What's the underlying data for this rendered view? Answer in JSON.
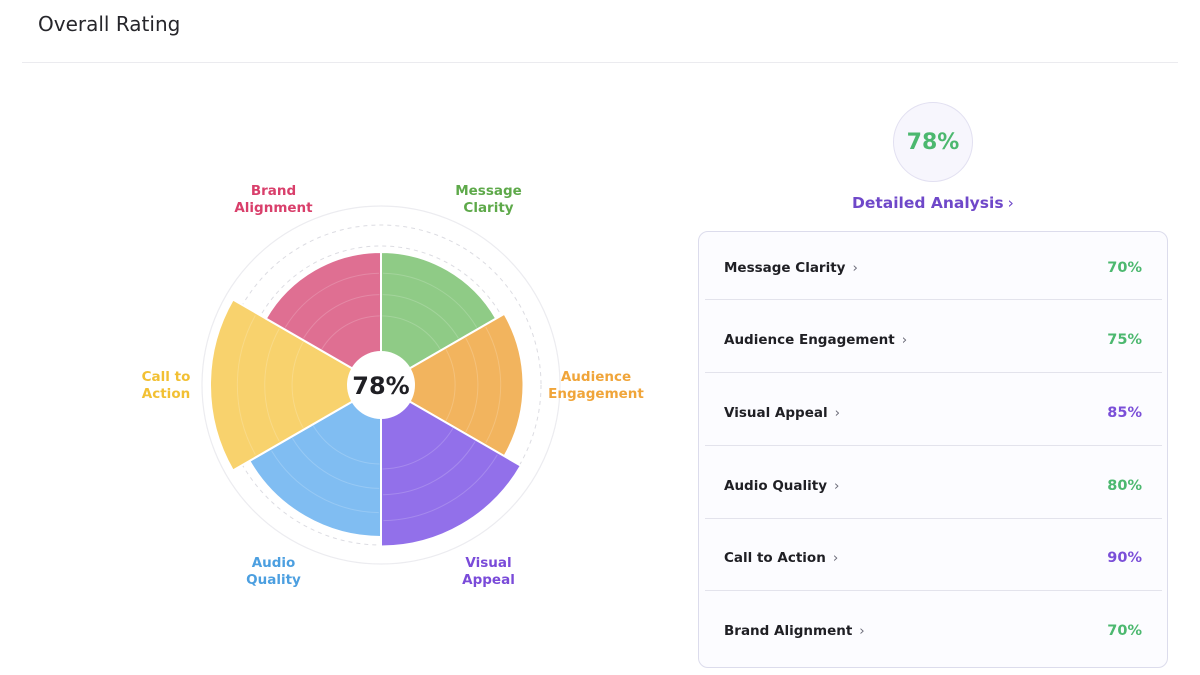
{
  "header": {
    "title": "Overall Rating"
  },
  "summary": {
    "score": "78%",
    "detail_link": "Detailed Analysis",
    "chevron": "›"
  },
  "colors": {
    "green": "#4cb86f",
    "purple": "#7b4fd8",
    "link": "#6f48c9"
  },
  "metrics": [
    {
      "label": "Message Clarity",
      "value": "70%",
      "color": "#4cb86f"
    },
    {
      "label": "Audience Engagement",
      "value": "75%",
      "color": "#4cb86f"
    },
    {
      "label": "Visual Appeal",
      "value": "85%",
      "color": "#7b4fd8"
    },
    {
      "label": "Audio Quality",
      "value": "80%",
      "color": "#4cb86f"
    },
    {
      "label": "Call to Action",
      "value": "90%",
      "color": "#7b4fd8"
    },
    {
      "label": "Brand Alignment",
      "value": "70%",
      "color": "#4cb86f"
    }
  ],
  "chart_data": {
    "type": "polar-area",
    "title": "Overall Rating",
    "center_label": "78%",
    "range": [
      0,
      100
    ],
    "grid": true,
    "categories": [
      "Message Clarity",
      "Audience Engagement",
      "Visual Appeal",
      "Audio Quality",
      "Call to Action",
      "Brand Alignment"
    ],
    "category_lines": [
      [
        "Message",
        "Clarity"
      ],
      [
        "Audience",
        "Engagement"
      ],
      [
        "Visual",
        "Appeal"
      ],
      [
        "Audio",
        "Quality"
      ],
      [
        "Call to",
        "Action"
      ],
      [
        "Brand",
        "Alignment"
      ]
    ],
    "values": [
      70,
      75,
      85,
      80,
      90,
      70
    ],
    "fill_colors": [
      "#8fcb86",
      "#f2b45e",
      "#9270ea",
      "#80bdf2",
      "#f8d26d",
      "#df6f92"
    ],
    "label_colors": [
      "#5ea94a",
      "#f0a53a",
      "#7a4bd9",
      "#4c9fe0",
      "#f2c033",
      "#d93f6b"
    ]
  }
}
